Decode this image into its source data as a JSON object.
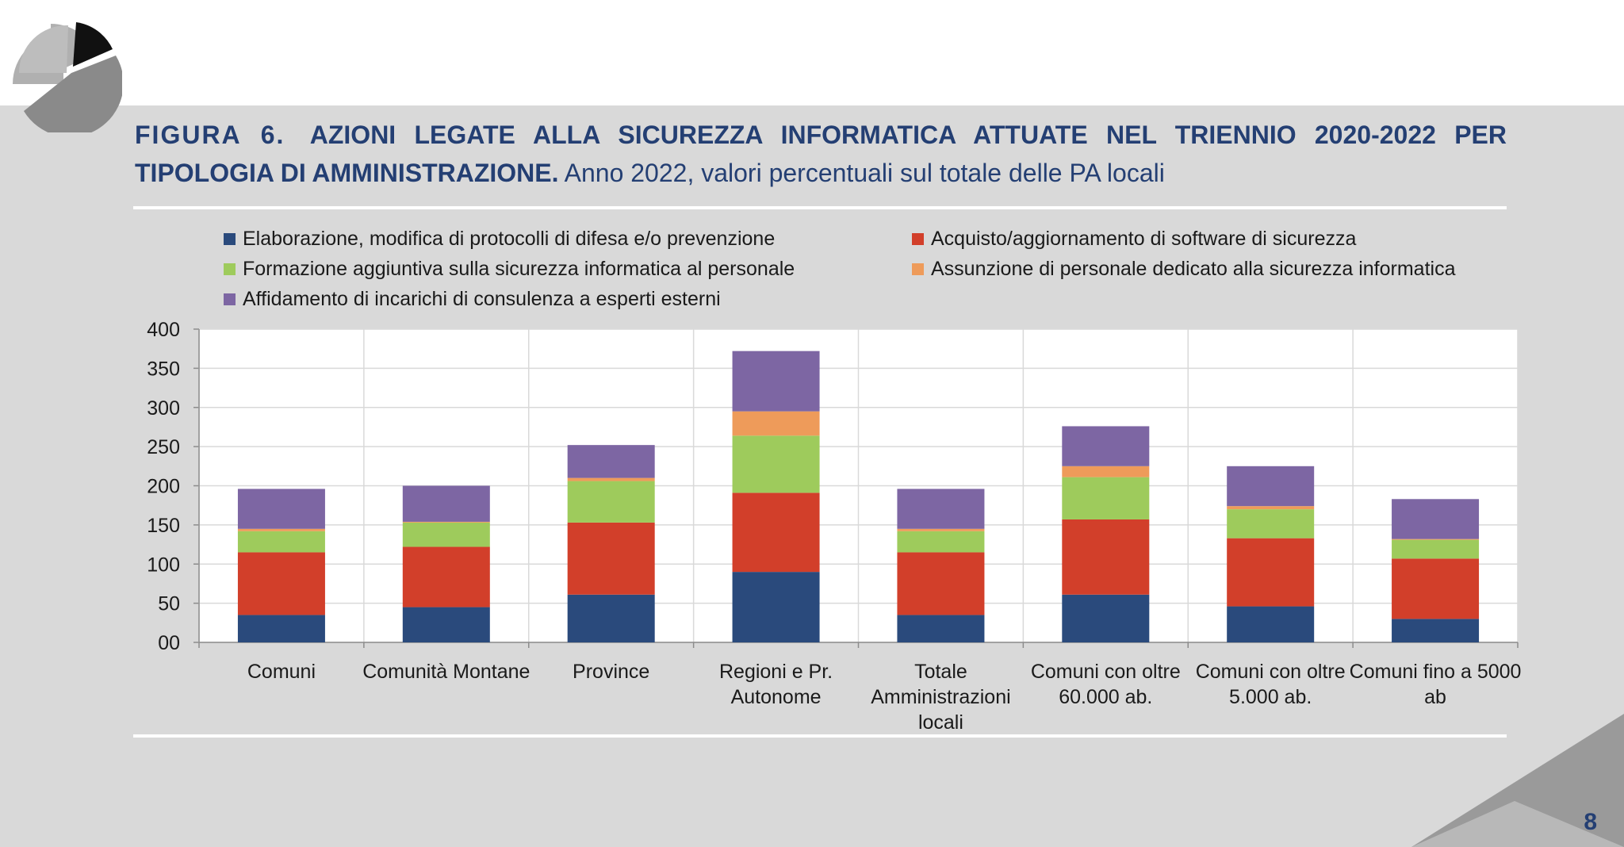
{
  "page": {
    "figure_label": "FIGURA 6.",
    "title_bold": "AZIONI LEGATE ALLA SICUREZZA INFORMATICA ATTUATE NEL TRIENNIO 2020-2022 PER TIPOLOGIA DI AMMINISTRAZIONE.",
    "title_plain": "Anno 2022, valori percentuali sul totale delle PA locali",
    "page_number": "8"
  },
  "colors": {
    "title": "#243f73",
    "band": "#d9d9d9",
    "corner": "#9a9a9a"
  },
  "chart_data": {
    "type": "bar",
    "stacked": true,
    "title": "",
    "xlabel": "",
    "ylabel": "",
    "ylim": [
      0,
      400
    ],
    "yticks": [
      0,
      50,
      100,
      150,
      200,
      250,
      300,
      350,
      400
    ],
    "ytick_labels": [
      "00",
      "50",
      "100",
      "150",
      "200",
      "250",
      "300",
      "350",
      "400"
    ],
    "grid": true,
    "legend_position": "top",
    "categories": [
      "Comuni",
      "Comunità Montane",
      "Province",
      "Regioni e Pr. Autonome",
      "Totale Amministrazioni locali",
      "Comuni con oltre 60.000 ab.",
      "Comuni con oltre 5.000 ab.",
      "Comuni fino a 5000 ab"
    ],
    "category_lines": [
      [
        "Comuni"
      ],
      [
        "Comunità Montane"
      ],
      [
        "Province"
      ],
      [
        "Regioni e Pr.",
        "Autonome"
      ],
      [
        "Totale",
        "Amministrazioni",
        "locali"
      ],
      [
        "Comuni con oltre",
        "60.000 ab."
      ],
      [
        "Comuni con oltre",
        "5.000 ab."
      ],
      [
        "Comuni fino a 5000",
        "ab"
      ]
    ],
    "series": [
      {
        "name": "Elaborazione, modifica di protocolli di difesa e/o prevenzione",
        "color": "#2a4a7c",
        "values": [
          35,
          45,
          61,
          90,
          35,
          61,
          46,
          30
        ]
      },
      {
        "name": "Acquisto/aggiornamento di software di sicurezza",
        "color": "#d23f2a",
        "values": [
          80,
          77,
          92,
          101,
          80,
          96,
          87,
          77
        ]
      },
      {
        "name": "Formazione aggiuntiva sulla sicurezza informatica al personale",
        "color": "#9ecb5c",
        "values": [
          27,
          31,
          53,
          73,
          27,
          54,
          37,
          24
        ]
      },
      {
        "name": "Assunzione di personale dedicato alla sicurezza informatica",
        "color": "#ee9b5a",
        "values": [
          3,
          1,
          4,
          31,
          3,
          14,
          4,
          1
        ]
      },
      {
        "name": "Affidamento di incarichi di consulenza a esperti esterni",
        "color": "#7d66a3",
        "values": [
          51,
          46,
          42,
          77,
          51,
          51,
          51,
          51
        ]
      }
    ]
  }
}
